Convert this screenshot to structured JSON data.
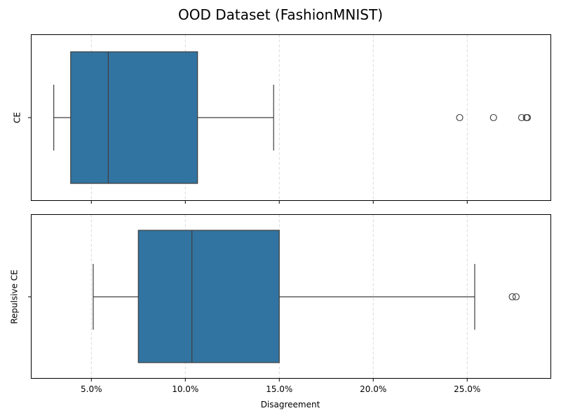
{
  "chart_data": {
    "type": "box",
    "title": "OOD Dataset (FashionMNIST)",
    "xlabel": "Disagreement",
    "xlim": [
      0.018,
      0.2945
    ],
    "xticks": [
      0.05,
      0.1,
      0.15,
      0.2,
      0.25
    ],
    "xtick_labels": [
      "5.0%",
      "10.0%",
      "15.0%",
      "20.0%",
      "25.0%"
    ],
    "grid": "x-axis, dashed",
    "box_color": "#3274a1",
    "panels": [
      {
        "label": "CE",
        "whisker_low": 0.03,
        "q1": 0.039,
        "median": 0.059,
        "q3": 0.1065,
        "whisker_high": 0.147,
        "outliers": [
          0.246,
          0.264,
          0.279,
          0.2815,
          0.282
        ]
      },
      {
        "label": "Repulsive CE",
        "whisker_low": 0.051,
        "q1": 0.075,
        "median": 0.1035,
        "q3": 0.15,
        "whisker_high": 0.254,
        "outliers": [
          0.274,
          0.276
        ]
      }
    ]
  }
}
